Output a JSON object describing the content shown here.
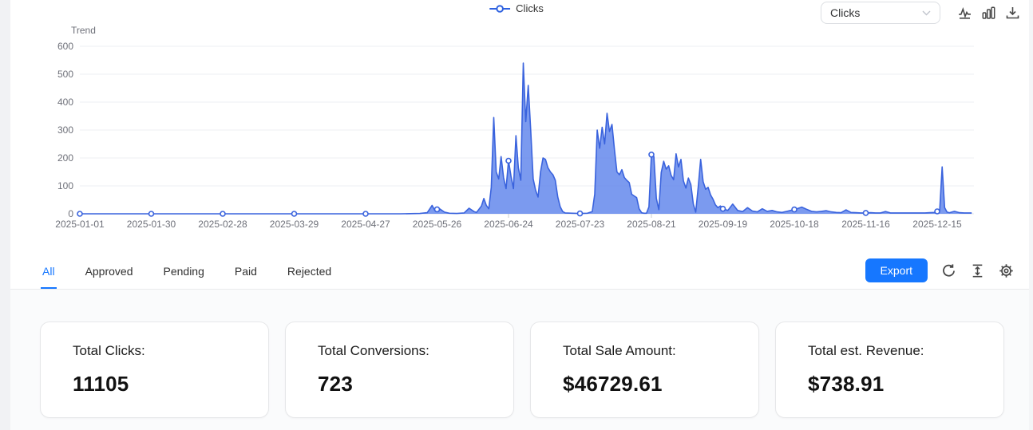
{
  "header": {
    "legend": {
      "label": "Clicks",
      "color": "#2f62e0"
    },
    "metric_select": {
      "value": "Clicks"
    },
    "toolbar_icons": [
      "line-chart-icon",
      "bar-chart-icon",
      "download-icon"
    ]
  },
  "chart_data": {
    "type": "area",
    "title": "Trend",
    "xlabel": "",
    "ylabel": "",
    "ylim": [
      0,
      600
    ],
    "y_ticks": [
      0,
      100,
      200,
      300,
      400,
      500,
      600
    ],
    "grid": true,
    "legend_position": "top-center",
    "x_tick_labels": [
      "2025-01-01",
      "2025-01-30",
      "2025-02-28",
      "2025-03-29",
      "2025-04-27",
      "2025-05-26",
      "2025-06-24",
      "2025-07-23",
      "2025-08-21",
      "2025-09-19",
      "2025-10-18",
      "2025-11-16",
      "2025-12-15"
    ],
    "x_tick_days": [
      0,
      29,
      58,
      87,
      116,
      145,
      174,
      203,
      232,
      261,
      290,
      319,
      348
    ],
    "series": [
      {
        "name": "Clicks",
        "line_color": "#3a63dd",
        "fill_color": "#5e84ec",
        "fill_opacity": 0.82,
        "points": [
          [
            0,
            0
          ],
          [
            15,
            0
          ],
          [
            29,
            0
          ],
          [
            45,
            0
          ],
          [
            58,
            0
          ],
          [
            70,
            0
          ],
          [
            87,
            0
          ],
          [
            100,
            0
          ],
          [
            116,
            0
          ],
          [
            130,
            0
          ],
          [
            138,
            1
          ],
          [
            141,
            4
          ],
          [
            143,
            30
          ],
          [
            144,
            14
          ],
          [
            146,
            18
          ],
          [
            148,
            6
          ],
          [
            150,
            2
          ],
          [
            153,
            1
          ],
          [
            156,
            3
          ],
          [
            158,
            20
          ],
          [
            160,
            8
          ],
          [
            161,
            5
          ],
          [
            163,
            28
          ],
          [
            164,
            55
          ],
          [
            165,
            30
          ],
          [
            166,
            18
          ],
          [
            167,
            95
          ],
          [
            168,
            345
          ],
          [
            169,
            150
          ],
          [
            170,
            125
          ],
          [
            171,
            205
          ],
          [
            172,
            130
          ],
          [
            173,
            90
          ],
          [
            174,
            190
          ],
          [
            175,
            135
          ],
          [
            176,
            90
          ],
          [
            177,
            280
          ],
          [
            178,
            165
          ],
          [
            179,
            120
          ],
          [
            180,
            540
          ],
          [
            181,
            330
          ],
          [
            182,
            460
          ],
          [
            183,
            300
          ],
          [
            184,
            125
          ],
          [
            185,
            85
          ],
          [
            186,
            60
          ],
          [
            187,
            150
          ],
          [
            188,
            200
          ],
          [
            189,
            195
          ],
          [
            190,
            165
          ],
          [
            191,
            150
          ],
          [
            192,
            140
          ],
          [
            193,
            120
          ],
          [
            194,
            60
          ],
          [
            195,
            25
          ],
          [
            196,
            8
          ],
          [
            197,
            3
          ],
          [
            200,
            2
          ],
          [
            203,
            1
          ],
          [
            206,
            2
          ],
          [
            208,
            8
          ],
          [
            209,
            70
          ],
          [
            210,
            300
          ],
          [
            211,
            235
          ],
          [
            212,
            310
          ],
          [
            213,
            250
          ],
          [
            214,
            360
          ],
          [
            215,
            295
          ],
          [
            216,
            320
          ],
          [
            217,
            230
          ],
          [
            218,
            150
          ],
          [
            219,
            140
          ],
          [
            220,
            158
          ],
          [
            221,
            130
          ],
          [
            222,
            120
          ],
          [
            223,
            112
          ],
          [
            224,
            70
          ],
          [
            225,
            64
          ],
          [
            226,
            58
          ],
          [
            227,
            18
          ],
          [
            228,
            4
          ],
          [
            229,
            2
          ],
          [
            230,
            2
          ],
          [
            231,
            25
          ],
          [
            232,
            212
          ],
          [
            233,
            205
          ],
          [
            234,
            55
          ],
          [
            235,
            15
          ],
          [
            236,
            148
          ],
          [
            237,
            188
          ],
          [
            238,
            160
          ],
          [
            239,
            172
          ],
          [
            240,
            138
          ],
          [
            241,
            122
          ],
          [
            242,
            215
          ],
          [
            243,
            168
          ],
          [
            244,
            195
          ],
          [
            245,
            118
          ],
          [
            246,
            92
          ],
          [
            247,
            128
          ],
          [
            248,
            105
          ],
          [
            249,
            35
          ],
          [
            250,
            6
          ],
          [
            251,
            95
          ],
          [
            252,
            195
          ],
          [
            253,
            115
          ],
          [
            254,
            88
          ],
          [
            255,
            95
          ],
          [
            256,
            68
          ],
          [
            257,
            52
          ],
          [
            258,
            32
          ],
          [
            259,
            22
          ],
          [
            260,
            28
          ],
          [
            261,
            18
          ],
          [
            263,
            12
          ],
          [
            265,
            35
          ],
          [
            267,
            12
          ],
          [
            269,
            8
          ],
          [
            271,
            22
          ],
          [
            273,
            10
          ],
          [
            275,
            7
          ],
          [
            277,
            18
          ],
          [
            279,
            9
          ],
          [
            281,
            12
          ],
          [
            283,
            7
          ],
          [
            285,
            5
          ],
          [
            287,
            9
          ],
          [
            289,
            13
          ],
          [
            291,
            18
          ],
          [
            293,
            24
          ],
          [
            295,
            16
          ],
          [
            297,
            9
          ],
          [
            299,
            7
          ],
          [
            301,
            9
          ],
          [
            303,
            11
          ],
          [
            305,
            7
          ],
          [
            307,
            5
          ],
          [
            309,
            4
          ],
          [
            311,
            14
          ],
          [
            313,
            5
          ],
          [
            315,
            4
          ],
          [
            317,
            3
          ],
          [
            319,
            3
          ],
          [
            321,
            4
          ],
          [
            323,
            3
          ],
          [
            325,
            3
          ],
          [
            327,
            8
          ],
          [
            329,
            3
          ],
          [
            331,
            3
          ],
          [
            333,
            3
          ],
          [
            335,
            3
          ],
          [
            337,
            3
          ],
          [
            339,
            3
          ],
          [
            341,
            3
          ],
          [
            343,
            3
          ],
          [
            345,
            4
          ],
          [
            347,
            5
          ],
          [
            349,
            12
          ],
          [
            350,
            168
          ],
          [
            351,
            22
          ],
          [
            352,
            6
          ],
          [
            353,
            4
          ],
          [
            355,
            9
          ],
          [
            357,
            4
          ],
          [
            359,
            3
          ],
          [
            362,
            3
          ]
        ]
      }
    ]
  },
  "tabs": {
    "active_color": "#1677ff",
    "items": [
      {
        "label": "All",
        "active": true
      },
      {
        "label": "Approved",
        "active": false
      },
      {
        "label": "Pending",
        "active": false
      },
      {
        "label": "Paid",
        "active": false
      },
      {
        "label": "Rejected",
        "active": false
      }
    ]
  },
  "actions": {
    "export_label": "Export",
    "export_bg": "#1677ff",
    "icons": [
      "refresh-icon",
      "row-height-icon",
      "settings-icon"
    ]
  },
  "stats": {
    "cards": [
      {
        "label": "Total Clicks:",
        "value": "11105"
      },
      {
        "label": "Total Conversions:",
        "value": "723"
      },
      {
        "label": "Total Sale Amount:",
        "value": "$46729.61"
      },
      {
        "label": "Total est. Revenue:",
        "value": "$738.91"
      }
    ]
  }
}
